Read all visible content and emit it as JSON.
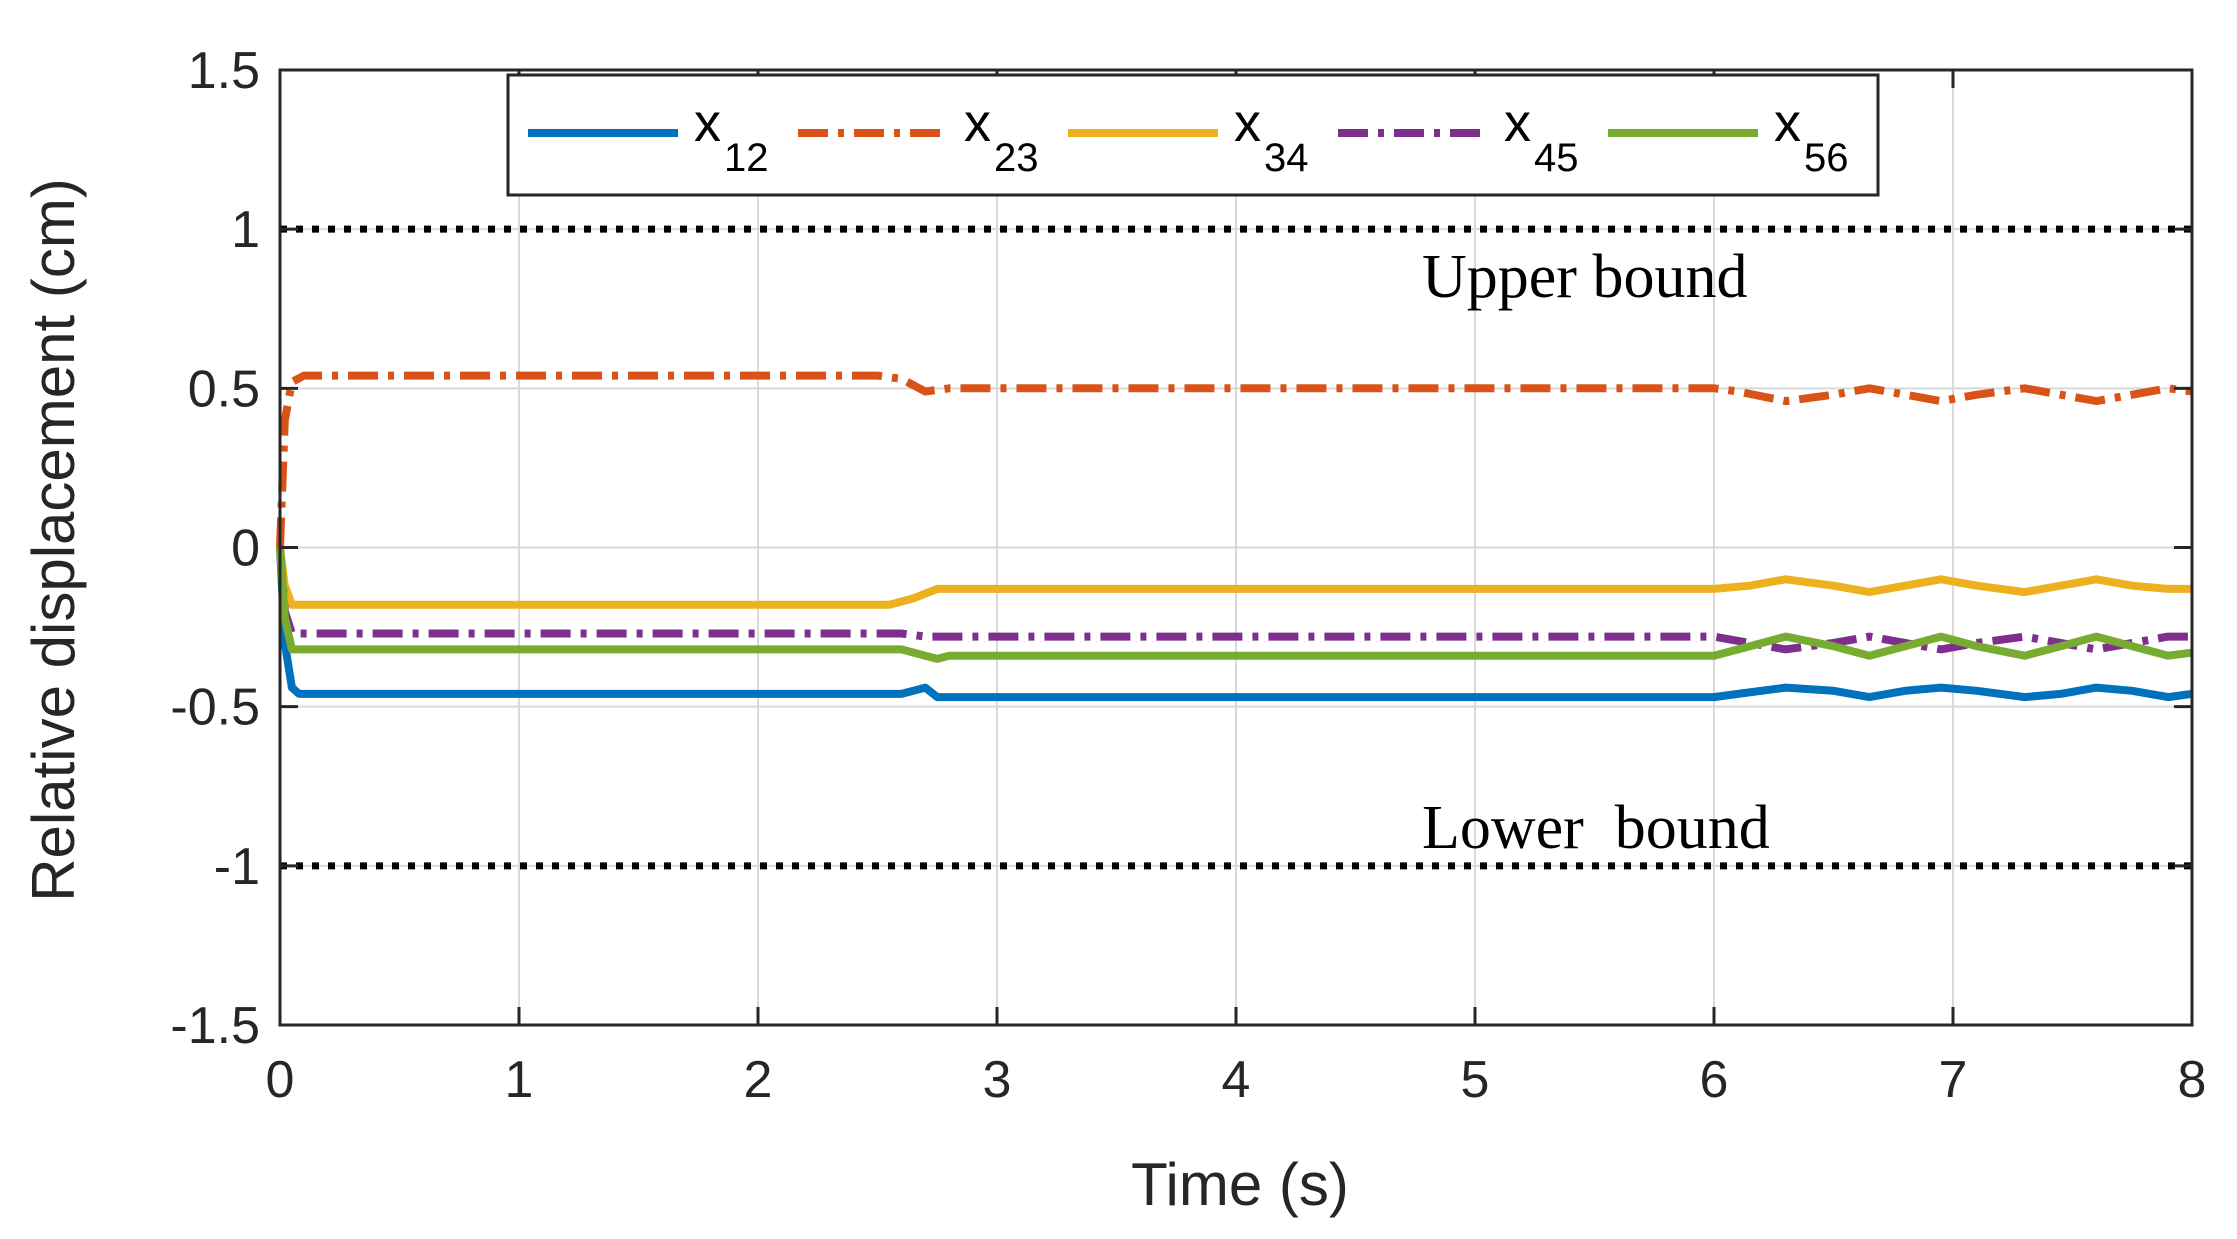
{
  "chart_data": {
    "type": "line",
    "xlabel": "Time (s)",
    "ylabel": "Relative displacement (cm)",
    "xlim": [
      0,
      8
    ],
    "ylim": [
      -1.5,
      1.5
    ],
    "xticks": [
      "0",
      "1",
      "2",
      "3",
      "4",
      "5",
      "6",
      "7",
      "8"
    ],
    "yticks": [
      "1.5",
      "1",
      "0.5",
      "0",
      "-0.5",
      "-1",
      "-1.5"
    ],
    "grid": true,
    "legend_position": "top",
    "series": [
      {
        "name": "x",
        "sub": "12",
        "color": "#0072BD",
        "dash": "solid",
        "x": [
          0,
          0.02,
          0.05,
          0.08,
          2.6,
          2.65,
          2.7,
          2.75,
          6.0,
          6.1,
          6.3,
          6.5,
          6.65,
          6.8,
          6.95,
          7.1,
          7.3,
          7.45,
          7.6,
          7.75,
          7.9,
          8.0
        ],
        "y": [
          0,
          -0.3,
          -0.44,
          -0.46,
          -0.46,
          -0.45,
          -0.44,
          -0.47,
          -0.47,
          -0.46,
          -0.44,
          -0.45,
          -0.47,
          -0.45,
          -0.44,
          -0.45,
          -0.47,
          -0.46,
          -0.44,
          -0.45,
          -0.47,
          -0.46
        ]
      },
      {
        "name": "x",
        "sub": "23",
        "color": "#D95319",
        "dash": "dashdot",
        "x": [
          0,
          0.02,
          0.05,
          0.1,
          2.5,
          2.6,
          2.7,
          2.8,
          6.0,
          6.1,
          6.3,
          6.5,
          6.65,
          6.8,
          6.95,
          7.1,
          7.3,
          7.45,
          7.6,
          7.75,
          7.9,
          8.0
        ],
        "y": [
          0,
          0.4,
          0.52,
          0.54,
          0.54,
          0.53,
          0.49,
          0.5,
          0.5,
          0.49,
          0.46,
          0.48,
          0.5,
          0.48,
          0.46,
          0.48,
          0.5,
          0.48,
          0.46,
          0.48,
          0.5,
          0.49
        ]
      },
      {
        "name": "x",
        "sub": "34",
        "color": "#EDB120",
        "dash": "solid",
        "x": [
          0,
          0.02,
          0.05,
          0.1,
          2.55,
          2.65,
          2.75,
          2.85,
          6.0,
          6.15,
          6.3,
          6.5,
          6.65,
          6.8,
          6.95,
          7.1,
          7.3,
          7.45,
          7.6,
          7.75,
          7.9,
          8.0
        ],
        "y": [
          0,
          -0.12,
          -0.18,
          -0.18,
          -0.18,
          -0.16,
          -0.13,
          -0.13,
          -0.13,
          -0.12,
          -0.1,
          -0.12,
          -0.14,
          -0.12,
          -0.1,
          -0.12,
          -0.14,
          -0.12,
          -0.1,
          -0.12,
          -0.13,
          -0.13
        ]
      },
      {
        "name": "x",
        "sub": "45",
        "color": "#7E2F8E",
        "dash": "dashdot",
        "x": [
          0,
          0.02,
          0.05,
          0.1,
          2.6,
          2.7,
          2.8,
          6.0,
          6.15,
          6.3,
          6.5,
          6.65,
          6.8,
          6.95,
          7.1,
          7.3,
          7.45,
          7.6,
          7.75,
          7.9,
          8.0
        ],
        "y": [
          0,
          -0.2,
          -0.27,
          -0.27,
          -0.27,
          -0.28,
          -0.28,
          -0.28,
          -0.3,
          -0.32,
          -0.3,
          -0.28,
          -0.3,
          -0.32,
          -0.3,
          -0.28,
          -0.3,
          -0.32,
          -0.3,
          -0.28,
          -0.28
        ]
      },
      {
        "name": "x",
        "sub": "56",
        "color": "#77AC30",
        "dash": "solid",
        "x": [
          0,
          0.02,
          0.05,
          0.1,
          2.6,
          2.7,
          2.75,
          2.8,
          6.0,
          6.15,
          6.3,
          6.5,
          6.65,
          6.8,
          6.95,
          7.1,
          7.3,
          7.45,
          7.6,
          7.75,
          7.9,
          8.0
        ],
        "y": [
          0,
          -0.22,
          -0.32,
          -0.32,
          -0.32,
          -0.34,
          -0.35,
          -0.34,
          -0.34,
          -0.31,
          -0.28,
          -0.31,
          -0.34,
          -0.31,
          -0.28,
          -0.31,
          -0.34,
          -0.31,
          -0.28,
          -0.31,
          -0.34,
          -0.33
        ]
      }
    ],
    "bounds": [
      {
        "label": "Upper bound",
        "y": 1
      },
      {
        "label": "Lower  bound",
        "y": -1
      }
    ]
  }
}
